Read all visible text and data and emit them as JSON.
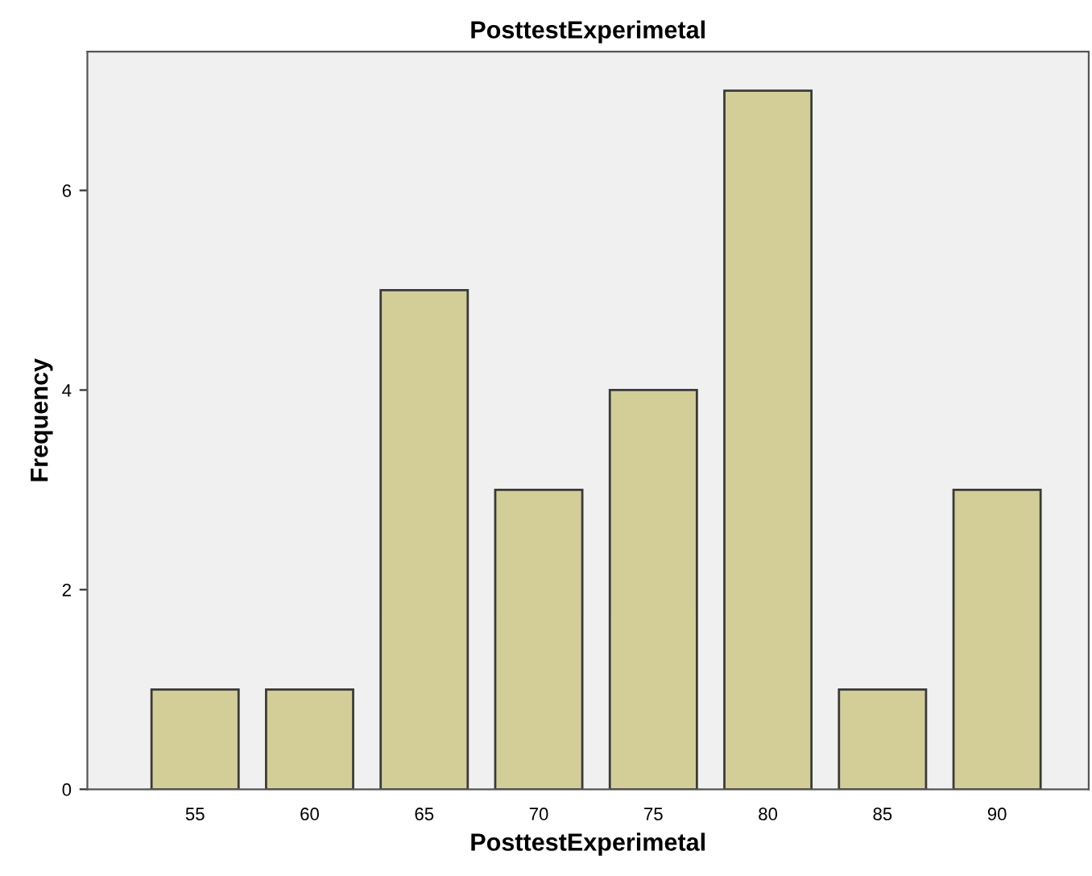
{
  "chart_data": {
    "type": "bar",
    "title": "PosttestExperimetal",
    "xlabel": "PosttestExperimetal",
    "ylabel": "Frequency",
    "categories": [
      "55",
      "60",
      "65",
      "70",
      "75",
      "80",
      "85",
      "90"
    ],
    "values": [
      1,
      1,
      5,
      3,
      4,
      7,
      1,
      3
    ],
    "color": "#d3ce97",
    "ylim": [
      0,
      7.39
    ],
    "yticks": [
      0,
      2,
      4,
      6
    ],
    "grid": false,
    "legend": false
  }
}
